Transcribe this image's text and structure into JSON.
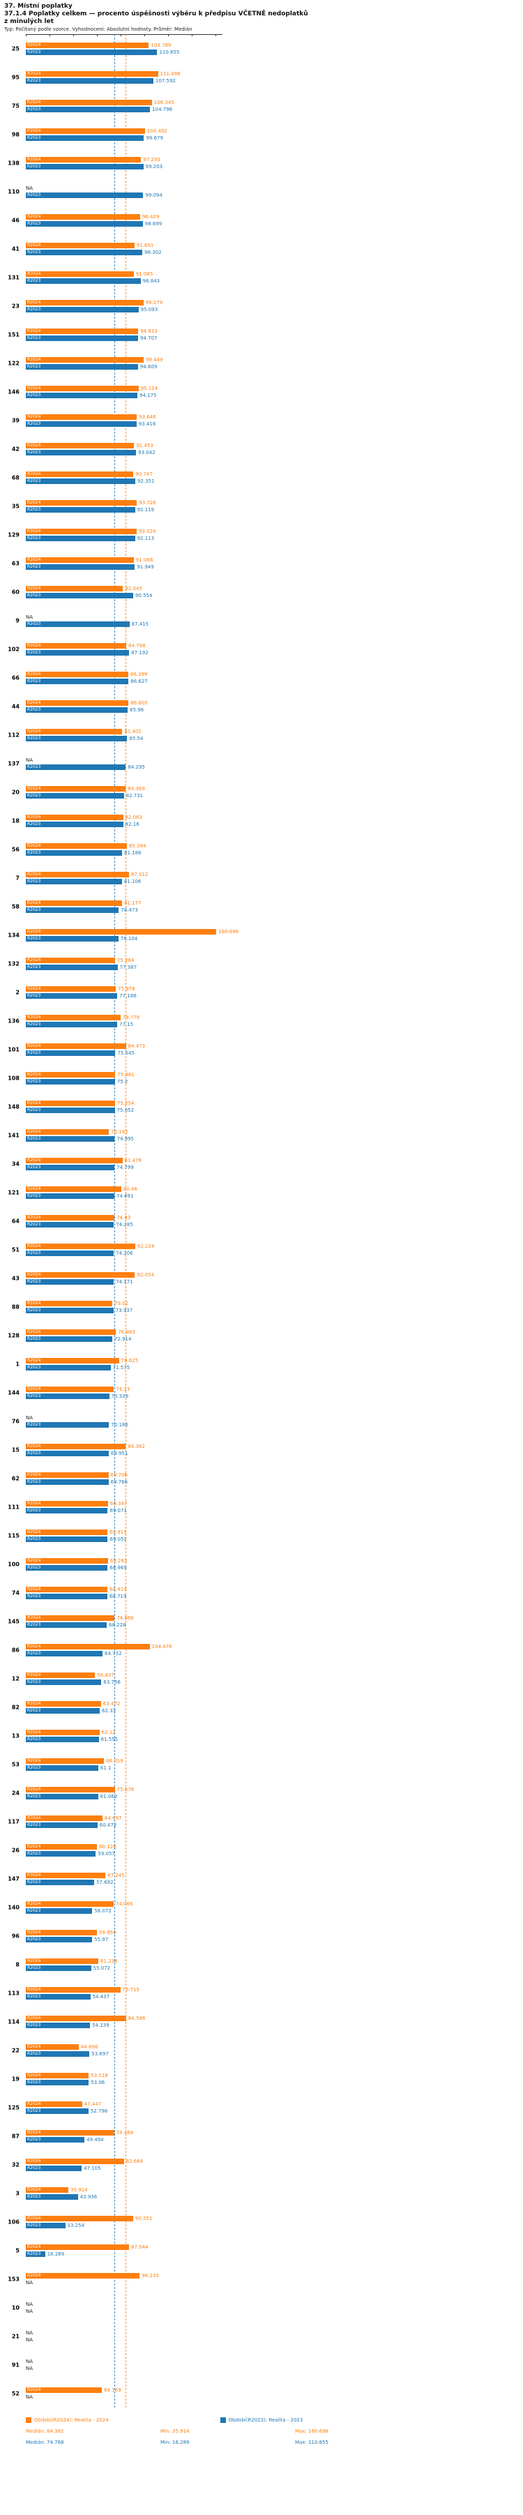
{
  "header": {
    "title": "37. Místní poplatky",
    "subtitle_line1": "37.1.4 Poplatky celkem — procento úspěšnosti výběru k předpisu VČETNĚ nedoplatků",
    "subtitle_line2": "z minulých let",
    "meta": "Typ: Počítaný podle vzorce. Vyhodnoceni: Absolutní hodnoty. Průměr: Medián"
  },
  "chart_data": {
    "type": "bar",
    "orientation": "horizontal",
    "title": "37.1.4 Poplatky celkem — procento úspěšnosti výběru k předpisu VČETNĚ nedoplatků z minulých let",
    "series_names": [
      "R2024",
      "R2023"
    ],
    "colors": {
      "r2024": "#ff7f0e",
      "r2023": "#1f77b4"
    },
    "axis": {
      "min": 0,
      "max": 166,
      "tick_step": 20
    },
    "median_lines": {
      "r2024": 84.382,
      "r2023": 74.768
    },
    "na_label": "NA",
    "rows": [
      {
        "id": "25",
        "r2024": 103.789,
        "r2023": 110.855
      },
      {
        "id": "95",
        "r2024": 111.498,
        "r2023": 107.592
      },
      {
        "id": "75",
        "r2024": 106.345,
        "r2023": 104.798
      },
      {
        "id": "98",
        "r2024": 100.492,
        "r2023": 99.679
      },
      {
        "id": "138",
        "r2024": 97.293,
        "r2023": 99.203
      },
      {
        "id": "110",
        "r2024": null,
        "r2023": 99.094
      },
      {
        "id": "46",
        "r2024": 96.429,
        "r2023": 98.699
      },
      {
        "id": "41",
        "r2024": 91.691,
        "r2023": 98.302
      },
      {
        "id": "131",
        "r2024": 91.065,
        "r2023": 96.843
      },
      {
        "id": "23",
        "r2024": 99.179,
        "r2023": 95.093
      },
      {
        "id": "151",
        "r2024": 94.833,
        "r2023": 94.707
      },
      {
        "id": "122",
        "r2024": 99.449,
        "r2023": 94.609
      },
      {
        "id": "146",
        "r2024": 95.114,
        "r2023": 94.175
      },
      {
        "id": "39",
        "r2024": 93.646,
        "r2023": 93.416
      },
      {
        "id": "42",
        "r2024": 91.453,
        "r2023": 93.042
      },
      {
        "id": "68",
        "r2024": 90.747,
        "r2023": 92.351
      },
      {
        "id": "35",
        "r2024": 93.726,
        "r2023": 92.119
      },
      {
        "id": "129",
        "r2024": 93.524,
        "r2023": 92.113
      },
      {
        "id": "63",
        "r2024": 91.066,
        "r2023": 91.949
      },
      {
        "id": "60",
        "r2024": 82.045,
        "r2023": 90.554
      },
      {
        "id": "9",
        "r2024": null,
        "r2023": 87.415
      },
      {
        "id": "102",
        "r2024": 84.798,
        "r2023": 87.192
      },
      {
        "id": "66",
        "r2024": 86.399,
        "r2023": 86.627
      },
      {
        "id": "44",
        "r2024": 86.605,
        "r2023": 85.96
      },
      {
        "id": "112",
        "r2024": 81.402,
        "r2023": 85.54
      },
      {
        "id": "137",
        "r2024": null,
        "r2023": 84.295
      },
      {
        "id": "20",
        "r2024": 84.369,
        "r2023": 82.731
      },
      {
        "id": "18",
        "r2024": 82.063,
        "r2023": 82.16
      },
      {
        "id": "56",
        "r2024": 85.284,
        "r2023": 81.188
      },
      {
        "id": "7",
        "r2024": 87.012,
        "r2023": 81.106
      },
      {
        "id": "58",
        "r2024": 81.177,
        "r2023": 78.473
      },
      {
        "id": "134",
        "r2024": 160.698,
        "r2023": 78.104
      },
      {
        "id": "132",
        "r2024": 75.284,
        "r2023": 77.387
      },
      {
        "id": "2",
        "r2024": 75.978,
        "r2023": 77.186
      },
      {
        "id": "136",
        "r2024": 79.779,
        "r2023": 77.15
      },
      {
        "id": "101",
        "r2024": 84.473,
        "r2023": 75.545
      },
      {
        "id": "108",
        "r2024": 75.381,
        "r2023": 75.2
      },
      {
        "id": "148",
        "r2024": 75.254,
        "r2023": 75.052
      },
      {
        "id": "141",
        "r2024": 70.182,
        "r2023": 74.995
      },
      {
        "id": "34",
        "r2024": 81.478,
        "r2023": 74.799
      },
      {
        "id": "121",
        "r2024": 80.46,
        "r2023": 74.691
      },
      {
        "id": "64",
        "r2024": 74.83,
        "r2023": 74.285
      },
      {
        "id": "51",
        "r2024": 92.224,
        "r2023": 74.206
      },
      {
        "id": "43",
        "r2024": 92.054,
        "r2023": 74.171
      },
      {
        "id": "88",
        "r2024": 73.02,
        "r2023": 73.937
      },
      {
        "id": "128",
        "r2024": 76.083,
        "r2023": 72.914
      },
      {
        "id": "1",
        "r2024": 78.625,
        "r2023": 71.575
      },
      {
        "id": "144",
        "r2024": 74.23,
        "r2023": 70.339
      },
      {
        "id": "76",
        "r2024": null,
        "r2023": 70.186
      },
      {
        "id": "15",
        "r2024": 84.382,
        "r2023": 69.951
      },
      {
        "id": "62",
        "r2024": 69.706,
        "r2023": 69.766
      },
      {
        "id": "111",
        "r2024": 69.347,
        "r2023": 69.071
      },
      {
        "id": "115",
        "r2024": 68.915,
        "r2023": 69.051
      },
      {
        "id": "100",
        "r2024": 69.283,
        "r2023": 68.969
      },
      {
        "id": "74",
        "r2024": 68.919,
        "r2023": 68.719
      },
      {
        "id": "145",
        "r2024": 74.868,
        "r2023": 68.228
      },
      {
        "id": "86",
        "r2024": 104.476,
        "r2023": 64.732
      },
      {
        "id": "12",
        "r2024": 58.437,
        "r2023": 63.756
      },
      {
        "id": "82",
        "r2024": 63.472,
        "r2023": 62.33
      },
      {
        "id": "13",
        "r2024": 62.12,
        "r2023": 61.555
      },
      {
        "id": "53",
        "r2024": 66.019,
        "r2023": 61.1
      },
      {
        "id": "24",
        "r2024": 75.078,
        "r2023": 61.062
      },
      {
        "id": "117",
        "r2024": 64.697,
        "r2023": 60.472
      },
      {
        "id": "26",
        "r2024": 60.128,
        "r2023": 59.057
      },
      {
        "id": "147",
        "r2024": 67.245,
        "r2023": 57.692
      },
      {
        "id": "140",
        "r2024": 74.066,
        "r2023": 56.072
      },
      {
        "id": "96",
        "r2024": 59.958,
        "r2023": 55.97
      },
      {
        "id": "8",
        "r2024": 61.238,
        "r2023": 55.072
      },
      {
        "id": "113",
        "r2024": 79.715,
        "r2023": 54.437
      },
      {
        "id": "114",
        "r2024": 84.596,
        "r2023": 54.239
      },
      {
        "id": "22",
        "r2024": 44.696,
        "r2023": 53.697
      },
      {
        "id": "19",
        "r2024": 53.118,
        "r2023": 53.06
      },
      {
        "id": "125",
        "r2024": 47.447,
        "r2023": 52.798
      },
      {
        "id": "87",
        "r2024": 74.464,
        "r2023": 49.494
      },
      {
        "id": "32",
        "r2024": 82.664,
        "r2023": 47.105
      },
      {
        "id": "3",
        "r2024": 35.914,
        "r2023": 43.936
      },
      {
        "id": "106",
        "r2024": 90.551,
        "r2023": 33.254
      },
      {
        "id": "5",
        "r2024": 87.044,
        "r2023": 16.289
      },
      {
        "id": "153",
        "r2024": 96.115,
        "r2023": null
      },
      {
        "id": "10",
        "r2024": null,
        "r2023": null
      },
      {
        "id": "21",
        "r2024": null,
        "r2023": null
      },
      {
        "id": "91",
        "r2024": null,
        "r2023": null
      },
      {
        "id": "52",
        "r2024": 64.169,
        "r2023": null
      }
    ]
  },
  "legend": {
    "r2024_label": "Období(R2024): Realita - 2024",
    "r2023_label": "Období(R2023): Realita - 2023",
    "r2024_stats": {
      "median": "Medián: 84.382",
      "min": "Min: 35.914",
      "max": "Max: 160.698"
    },
    "r2023_stats": {
      "median": "Medián: 74.768",
      "min": "Min: 16.289",
      "max": "Max: 110.855"
    }
  }
}
